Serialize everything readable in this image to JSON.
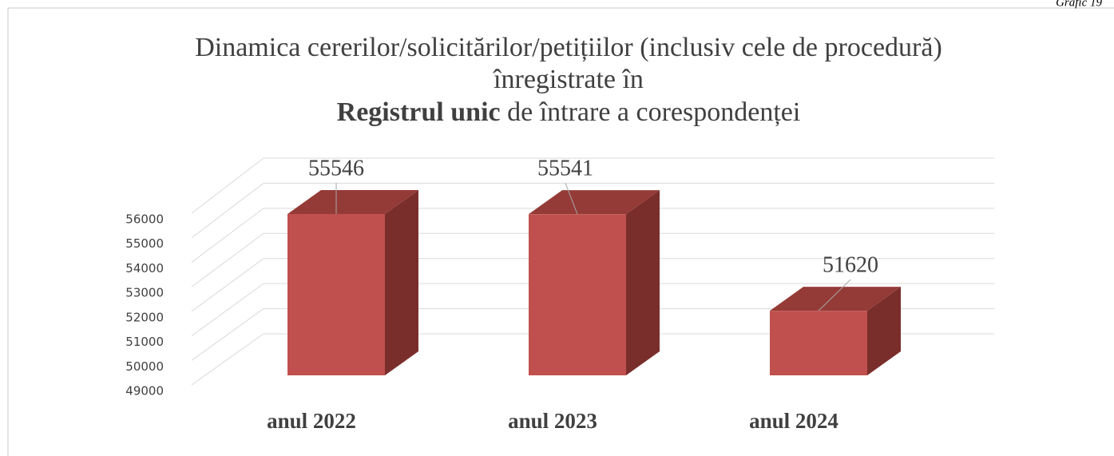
{
  "page_label": "Grafic 19",
  "chart_data": {
    "type": "bar3d",
    "title_lines": [
      "Dinamica cererilor/solicitărilor/petițiilor (inclusiv cele de procedură)",
      "înregistrate în"
    ],
    "title_bold": "Registrul unic",
    "title_rest": " de întrare a corespondenței",
    "categories": [
      "anul 2022",
      "anul 2023",
      "anul 2024"
    ],
    "values": [
      55546,
      55541,
      51620
    ],
    "color": "#c0504d",
    "top_color": "#953b37",
    "side_color": "#7a2e2c",
    "ylim": [
      49000,
      56000
    ],
    "yticks": [
      49000,
      50000,
      51000,
      52000,
      53000,
      54000,
      55000,
      56000
    ],
    "grid": true
  }
}
